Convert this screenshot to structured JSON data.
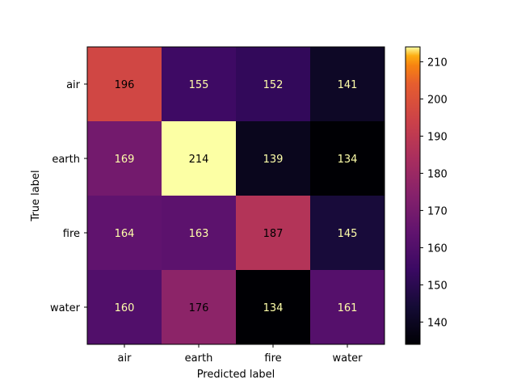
{
  "chart_data": {
    "type": "heatmap",
    "title": "",
    "xlabel": "Predicted label",
    "ylabel": "True label",
    "x_categories": [
      "air",
      "earth",
      "fire",
      "water"
    ],
    "y_categories": [
      "air",
      "earth",
      "fire",
      "water"
    ],
    "values": [
      [
        196,
        155,
        152,
        141
      ],
      [
        169,
        214,
        139,
        134
      ],
      [
        164,
        163,
        187,
        145
      ],
      [
        160,
        176,
        134,
        161
      ]
    ],
    "colormap": "inferno",
    "colorbar": {
      "min": 134,
      "max": 214,
      "ticks": [
        140,
        150,
        160,
        170,
        180,
        190,
        200,
        210
      ]
    },
    "colors": {
      "text_on_dark": "#ffffaa",
      "text_on_light": "#000000"
    }
  }
}
